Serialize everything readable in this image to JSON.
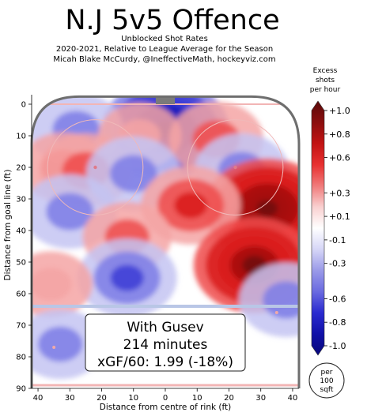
{
  "chart_data": {
    "type": "heatmap",
    "title": "N.J 5v5 Offence",
    "subtitle_lines": [
      "Unblocked Shot Rates",
      "2020-2021, Relative to League Average for the Season",
      "Micah Blake McCurdy, @IneffectiveMath, hockeyviz.com"
    ],
    "xlabel": "Distance from centre of rink (ft)",
    "ylabel": "Distance from goal line (ft)",
    "x_ticks": [
      40,
      30,
      20,
      10,
      0,
      10,
      20,
      30,
      40
    ],
    "x_tick_values": [
      -40,
      -30,
      -20,
      -10,
      0,
      10,
      20,
      30,
      40
    ],
    "y_ticks": [
      0,
      10,
      20,
      30,
      40,
      50,
      60,
      70,
      80,
      90
    ],
    "xlim": [
      -42,
      42
    ],
    "ylim": [
      -3,
      90
    ],
    "colorbar": {
      "title_lines": [
        "Excess",
        "shots",
        "per hour"
      ],
      "range": [
        -1.0,
        1.0
      ],
      "tick_values": [
        1.0,
        0.8,
        0.6,
        0.3,
        0.1,
        -0.1,
        -0.3,
        -0.6,
        -0.8,
        -1.0
      ],
      "tick_labels": [
        "+1.0",
        "+0.8",
        "+0.6",
        "+0.3",
        "+0.1",
        "-0.1",
        "-0.3",
        "-0.6",
        "-0.8",
        "-1.0"
      ],
      "colors": [
        "#5a0a0a",
        "#8b0e0e",
        "#c21313",
        "#e83030",
        "#f07a7a",
        "#f9d0d0",
        "#ffffff",
        "#d6d6f7",
        "#9a9ae8",
        "#6a6ae0",
        "#2a2ad0",
        "#1010a8",
        "#08087a"
      ]
    },
    "hotspots": [
      {
        "x": 0,
        "y": 8,
        "value": -1.0
      },
      {
        "x": -28,
        "y": 8,
        "value": -0.4
      },
      {
        "x": -8,
        "y": 10,
        "value": 0.2
      },
      {
        "x": 16,
        "y": 11,
        "value": 0.4
      },
      {
        "x": -32,
        "y": 20,
        "value": 0.3
      },
      {
        "x": -25,
        "y": 21,
        "value": 0.4
      },
      {
        "x": -10,
        "y": 22,
        "value": -0.4
      },
      {
        "x": 24,
        "y": 21,
        "value": -0.4
      },
      {
        "x": -30,
        "y": 34,
        "value": -0.4
      },
      {
        "x": 32,
        "y": 33,
        "value": 1.0
      },
      {
        "x": 8,
        "y": 32,
        "value": 0.5
      },
      {
        "x": -12,
        "y": 42,
        "value": 0.3
      },
      {
        "x": 28,
        "y": 51,
        "value": 0.9
      },
      {
        "x": -12,
        "y": 55,
        "value": -0.5
      },
      {
        "x": -36,
        "y": 57,
        "value": 0.2
      },
      {
        "x": 38,
        "y": 62,
        "value": -0.4
      },
      {
        "x": -33,
        "y": 76,
        "value": -0.3
      }
    ],
    "annotation": {
      "lines": [
        "With Gusev",
        "214 minutes",
        "xGF/60: 1.99 (-18%)"
      ]
    },
    "area_key": {
      "lines": [
        "per",
        "100",
        "sqft"
      ]
    }
  }
}
